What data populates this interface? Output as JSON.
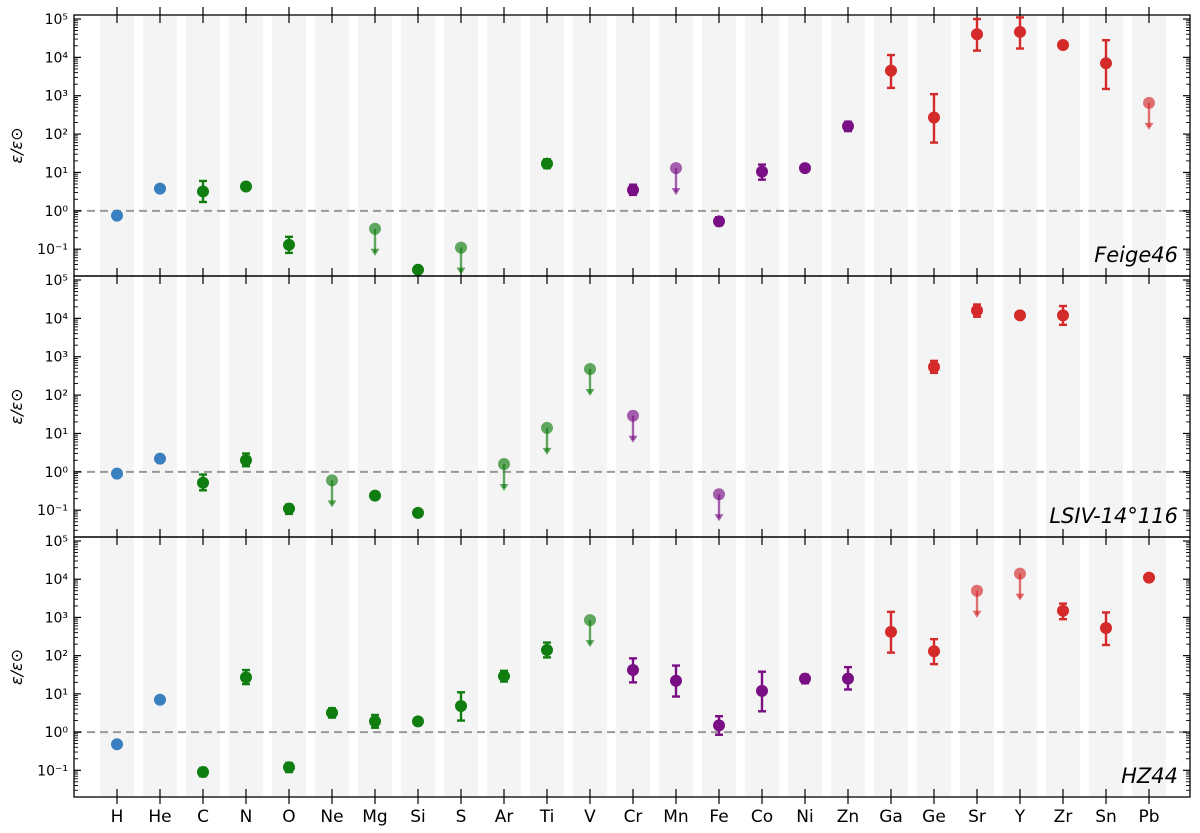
{
  "chart_data": {
    "type": "scatter",
    "yscale": "log",
    "ylim": [
      0.02,
      100000
    ],
    "ylabel": "ε/ε⊙",
    "ytick_labels": [
      "10⁻¹",
      "10⁰",
      "10¹",
      "10²",
      "10³",
      "10⁴",
      "10⁵"
    ],
    "ytick_values": [
      0.1,
      1,
      10,
      100,
      1000,
      10000,
      100000
    ],
    "reference_line": 1,
    "elements": [
      "H",
      "He",
      "C",
      "N",
      "O",
      "Ne",
      "Mg",
      "Si",
      "S",
      "Ar",
      "Ti",
      "V",
      "Cr",
      "Mn",
      "Fe",
      "Co",
      "Ni",
      "Zn",
      "Ga",
      "Ge",
      "Sr",
      "Y",
      "Zr",
      "Sn",
      "Pb"
    ],
    "groups": {
      "light": {
        "color": "#3a7fbf",
        "elements": [
          "H",
          "He"
        ]
      },
      "alpha": {
        "color": "#0f7d0f",
        "elements": [
          "C",
          "N",
          "O",
          "Ne",
          "Mg",
          "Si",
          "S",
          "Ar",
          "Ti",
          "V"
        ]
      },
      "iron": {
        "color": "#7a0f85",
        "elements": [
          "Cr",
          "Mn",
          "Fe",
          "Co",
          "Ni",
          "Zn"
        ]
      },
      "heavy": {
        "color": "#d42a2a",
        "elements": [
          "Ga",
          "Ge",
          "Sr",
          "Y",
          "Zr",
          "Sn",
          "Pb"
        ]
      }
    },
    "panels": [
      {
        "star": "Feige46",
        "points": [
          {
            "el": "H",
            "y": 0.75
          },
          {
            "el": "He",
            "y": 3.8
          },
          {
            "el": "C",
            "y": 3.2,
            "lo": 1.7,
            "hi": 6.0
          },
          {
            "el": "N",
            "y": 4.3,
            "lo": 3.5,
            "hi": 5.3
          },
          {
            "el": "O",
            "y": 0.13,
            "lo": 0.08,
            "hi": 0.21
          },
          {
            "el": "Mg",
            "y": 0.34,
            "upper_limit": true
          },
          {
            "el": "Si",
            "y": 0.029
          },
          {
            "el": "S",
            "y": 0.11,
            "upper_limit": true
          },
          {
            "el": "Ti",
            "y": 17,
            "lo": 13,
            "hi": 22
          },
          {
            "el": "Cr",
            "y": 3.5,
            "lo": 2.6,
            "hi": 4.8
          },
          {
            "el": "Mn",
            "y": 13,
            "upper_limit": true
          },
          {
            "el": "Fe",
            "y": 0.53,
            "lo": 0.42,
            "hi": 0.68
          },
          {
            "el": "Co",
            "y": 10.5,
            "lo": 6.5,
            "hi": 16
          },
          {
            "el": "Ni",
            "y": 13
          },
          {
            "el": "Zn",
            "y": 160,
            "lo": 120,
            "hi": 210
          },
          {
            "el": "Ga",
            "y": 4500,
            "lo": 1600,
            "hi": 11500
          },
          {
            "el": "Ge",
            "y": 270,
            "lo": 60,
            "hi": 1100
          },
          {
            "el": "Sr",
            "y": 40000,
            "lo": 15000,
            "hi": 100000
          },
          {
            "el": "Y",
            "y": 46000,
            "lo": 17000,
            "hi": 110000
          },
          {
            "el": "Zr",
            "y": 21000
          },
          {
            "el": "Sn",
            "y": 7000,
            "lo": 1500,
            "hi": 28000
          },
          {
            "el": "Pb",
            "y": 650,
            "upper_limit": true
          }
        ]
      },
      {
        "star": "LSIV-14°116",
        "points": [
          {
            "el": "H",
            "y": 0.9
          },
          {
            "el": "He",
            "y": 2.2
          },
          {
            "el": "C",
            "y": 0.52,
            "lo": 0.33,
            "hi": 0.85
          },
          {
            "el": "N",
            "y": 2.0,
            "lo": 1.4,
            "hi": 3.0
          },
          {
            "el": "O",
            "y": 0.11,
            "lo": 0.08,
            "hi": 0.14
          },
          {
            "el": "Ne",
            "y": 0.6,
            "upper_limit": true
          },
          {
            "el": "Mg",
            "y": 0.24
          },
          {
            "el": "Si",
            "y": 0.085
          },
          {
            "el": "Ar",
            "y": 1.6,
            "upper_limit": true
          },
          {
            "el": "Ti",
            "y": 14,
            "upper_limit": true
          },
          {
            "el": "V",
            "y": 480,
            "upper_limit": true
          },
          {
            "el": "Cr",
            "y": 29,
            "upper_limit": true
          },
          {
            "el": "Fe",
            "y": 0.26,
            "upper_limit": true
          },
          {
            "el": "Ge",
            "y": 540,
            "lo": 380,
            "hi": 780
          },
          {
            "el": "Sr",
            "y": 16000,
            "lo": 11000,
            "hi": 23000
          },
          {
            "el": "Y",
            "y": 12000
          },
          {
            "el": "Zr",
            "y": 12000,
            "lo": 6800,
            "hi": 21000
          }
        ]
      },
      {
        "star": "HZ44",
        "points": [
          {
            "el": "H",
            "y": 0.48
          },
          {
            "el": "He",
            "y": 7.0
          },
          {
            "el": "C",
            "y": 0.09,
            "lo": 0.07,
            "hi": 0.115
          },
          {
            "el": "N",
            "y": 27,
            "lo": 18,
            "hi": 42
          },
          {
            "el": "O",
            "y": 0.12,
            "lo": 0.09,
            "hi": 0.155
          },
          {
            "el": "Ne",
            "y": 3.2,
            "lo": 2.4,
            "hi": 4.2
          },
          {
            "el": "Mg",
            "y": 1.9,
            "lo": 1.3,
            "hi": 2.8
          },
          {
            "el": "Si",
            "y": 1.9
          },
          {
            "el": "S",
            "y": 4.8,
            "lo": 2.0,
            "hi": 11
          },
          {
            "el": "Ar",
            "y": 29,
            "lo": 21,
            "hi": 40
          },
          {
            "el": "Ti",
            "y": 140,
            "lo": 90,
            "hi": 220
          },
          {
            "el": "V",
            "y": 850,
            "upper_limit": true
          },
          {
            "el": "Cr",
            "y": 42,
            "lo": 20,
            "hi": 85
          },
          {
            "el": "Mn",
            "y": 22,
            "lo": 8.5,
            "hi": 55
          },
          {
            "el": "Fe",
            "y": 1.5,
            "lo": 0.85,
            "hi": 2.6
          },
          {
            "el": "Co",
            "y": 12,
            "lo": 3.5,
            "hi": 38
          },
          {
            "el": "Ni",
            "y": 25,
            "lo": 19,
            "hi": 32
          },
          {
            "el": "Zn",
            "y": 25,
            "lo": 13,
            "hi": 50
          },
          {
            "el": "Ga",
            "y": 420,
            "lo": 120,
            "hi": 1400
          },
          {
            "el": "Ge",
            "y": 130,
            "lo": 60,
            "hi": 270
          },
          {
            "el": "Sr",
            "y": 5000,
            "upper_limit": true
          },
          {
            "el": "Y",
            "y": 14000,
            "upper_limit": true
          },
          {
            "el": "Zr",
            "y": 1500,
            "lo": 900,
            "hi": 2300
          },
          {
            "el": "Sn",
            "y": 530,
            "lo": 190,
            "hi": 1350
          },
          {
            "el": "Pb",
            "y": 11000,
            "lo": 9000,
            "hi": 13000
          }
        ]
      }
    ]
  }
}
